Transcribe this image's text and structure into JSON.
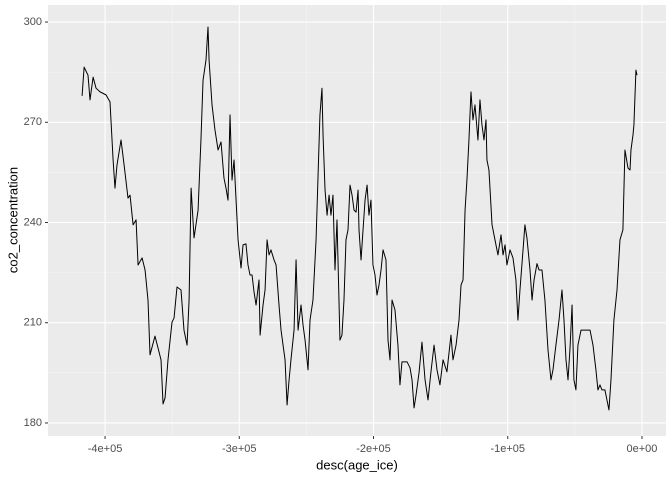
{
  "chart_data": {
    "type": "line",
    "x_label": "desc(age_ice)",
    "y_label": "co2_concentration",
    "x": [
      -417100,
      -415600,
      -412700,
      -411200,
      -408900,
      -406700,
      -403700,
      -399300,
      -396300,
      -394000,
      -392600,
      -391100,
      -388100,
      -385800,
      -382900,
      -381400,
      -379100,
      -376900,
      -375400,
      -372400,
      -370200,
      -368000,
      -366500,
      -362800,
      -360500,
      -358300,
      -356800,
      -355300,
      -353100,
      -350100,
      -348600,
      -346400,
      -343400,
      -341200,
      -338900,
      -337400,
      -335900,
      -333700,
      -330700,
      -328500,
      -327000,
      -324800,
      -323300,
      -322500,
      -320300,
      -318100,
      -315800,
      -313600,
      -311400,
      -309900,
      -308400,
      -306900,
      -305400,
      -303900,
      -302400,
      -300900,
      -298700,
      -297200,
      -295000,
      -293500,
      -292000,
      -290500,
      -289000,
      -287500,
      -285300,
      -284500,
      -282300,
      -280800,
      -279300,
      -277800,
      -276400,
      -274100,
      -272600,
      -270400,
      -268900,
      -267400,
      -265900,
      -264400,
      -262900,
      -261500,
      -259200,
      -257700,
      -256200,
      -254000,
      -252500,
      -251000,
      -248800,
      -247300,
      -245100,
      -242800,
      -241300,
      -239900,
      -238400,
      -237600,
      -236100,
      -234600,
      -233100,
      -231700,
      -230200,
      -228700,
      -227200,
      -225000,
      -223500,
      -222000,
      -220500,
      -219000,
      -217500,
      -216000,
      -214500,
      -213000,
      -211500,
      -210800,
      -209300,
      -207800,
      -206300,
      -204800,
      -203400,
      -201900,
      -200400,
      -198900,
      -197400,
      -195900,
      -194400,
      -192900,
      -190700,
      -189200,
      -187700,
      -186200,
      -184000,
      -181800,
      -180300,
      -178800,
      -177300,
      -175000,
      -172800,
      -171300,
      -169800,
      -168300,
      -166100,
      -163900,
      -161600,
      -159400,
      -157200,
      -154900,
      -152700,
      -150500,
      -148200,
      -145300,
      -142300,
      -140800,
      -138500,
      -136300,
      -134800,
      -133300,
      -131800,
      -130400,
      -128900,
      -127400,
      -125900,
      -124400,
      -122200,
      -120700,
      -119200,
      -117700,
      -116200,
      -115500,
      -114000,
      -111700,
      -109500,
      -107300,
      -105000,
      -103500,
      -102000,
      -100600,
      -98300,
      -96100,
      -93900,
      -92400,
      -90900,
      -88600,
      -87200,
      -85700,
      -83400,
      -81900,
      -80400,
      -78200,
      -76700,
      -74500,
      -72300,
      -70000,
      -67800,
      -66300,
      -64100,
      -61800,
      -59600,
      -58100,
      -56600,
      -55100,
      -53600,
      -52100,
      -50700,
      -49200,
      -47700,
      -45400,
      -43200,
      -41000,
      -38700,
      -36500,
      -34300,
      -32800,
      -31300,
      -29800,
      -27600,
      -24600,
      -23100,
      -20900,
      -18600,
      -16400,
      -14200,
      -12700,
      -10400,
      -8900,
      -8200,
      -6700,
      -6000,
      -4500,
      -3700
    ],
    "values": [
      277.9,
      286.5,
      284.1,
      276.7,
      283.5,
      280.2,
      279.1,
      278.2,
      276.1,
      258.7,
      250.3,
      257.2,
      264.7,
      257.2,
      247.3,
      248.2,
      239.3,
      240.8,
      227.3,
      229.4,
      225.8,
      216.8,
      200.4,
      206.0,
      202.4,
      198.9,
      185.7,
      187.5,
      198.9,
      210.2,
      211.4,
      220.7,
      219.8,
      207.8,
      203.3,
      216.8,
      250.3,
      235.4,
      243.7,
      265.3,
      282.6,
      288.6,
      298.5,
      288.6,
      275.2,
      267.7,
      261.7,
      264.1,
      253.3,
      250.3,
      246.7,
      272.2,
      252.7,
      258.7,
      246.7,
      234.8,
      226.4,
      233.3,
      233.6,
      227.3,
      224.3,
      224.3,
      219.2,
      215.3,
      222.8,
      206.3,
      215.3,
      219.8,
      234.8,
      230.3,
      231.8,
      228.8,
      227.3,
      215.3,
      207.8,
      203.3,
      198.9,
      185.4,
      192.9,
      198.9,
      207.8,
      228.8,
      207.8,
      215.3,
      209.3,
      204.8,
      195.9,
      210.8,
      216.8,
      234.8,
      254.2,
      272.2,
      280.2,
      266.2,
      249.7,
      242.2,
      248.2,
      242.2,
      248.2,
      225.8,
      240.8,
      204.8,
      206.3,
      216.8,
      234.8,
      237.8,
      251.2,
      248.2,
      243.7,
      243.1,
      249.7,
      237.8,
      228.8,
      237.8,
      246.7,
      251.2,
      242.2,
      246.7,
      227.3,
      224.3,
      218.3,
      221.3,
      225.8,
      231.8,
      228.8,
      204.8,
      198.9,
      216.8,
      213.8,
      203.3,
      191.4,
      198.3,
      198.3,
      198.3,
      196.5,
      192.9,
      184.5,
      188.4,
      195.0,
      204.2,
      192.9,
      186.9,
      195.3,
      203.3,
      195.9,
      191.4,
      198.9,
      195.3,
      206.3,
      198.9,
      203.3,
      210.8,
      221.3,
      222.8,
      243.7,
      252.7,
      264.7,
      279.1,
      270.7,
      275.2,
      264.7,
      276.7,
      269.2,
      264.7,
      270.7,
      258.7,
      255.7,
      239.3,
      234.8,
      230.3,
      236.3,
      230.3,
      233.3,
      227.3,
      231.8,
      229.4,
      222.8,
      210.8,
      219.8,
      231.8,
      239.3,
      235.4,
      225.8,
      216.8,
      222.8,
      227.7,
      225.8,
      225.8,
      216.8,
      201.8,
      192.9,
      195.9,
      203.3,
      210.8,
      219.8,
      210.8,
      198.9,
      192.9,
      202.4,
      215.3,
      192.9,
      189.9,
      203.3,
      207.8,
      207.8,
      207.8,
      207.8,
      203.3,
      195.9,
      189.9,
      191.4,
      189.9,
      189.9,
      183.9,
      192.9,
      210.8,
      219.8,
      234.8,
      237.8,
      261.7,
      256.3,
      255.7,
      261.7,
      266.2,
      269.2,
      285.6,
      284.1
    ],
    "color": "#000000",
    "xlim": [
      -442500,
      17900
    ],
    "ylim": [
      176.1,
      305.1
    ],
    "xticks": [
      {
        "value": -400000,
        "label": "-4e+05"
      },
      {
        "value": -300000,
        "label": "-3e+05"
      },
      {
        "value": -200000,
        "label": "-2e+05"
      },
      {
        "value": -100000,
        "label": "-1e+05"
      },
      {
        "value": 0,
        "label": "0e+00"
      }
    ],
    "yticks": [
      180,
      210,
      240,
      270,
      300
    ],
    "grid": true
  }
}
